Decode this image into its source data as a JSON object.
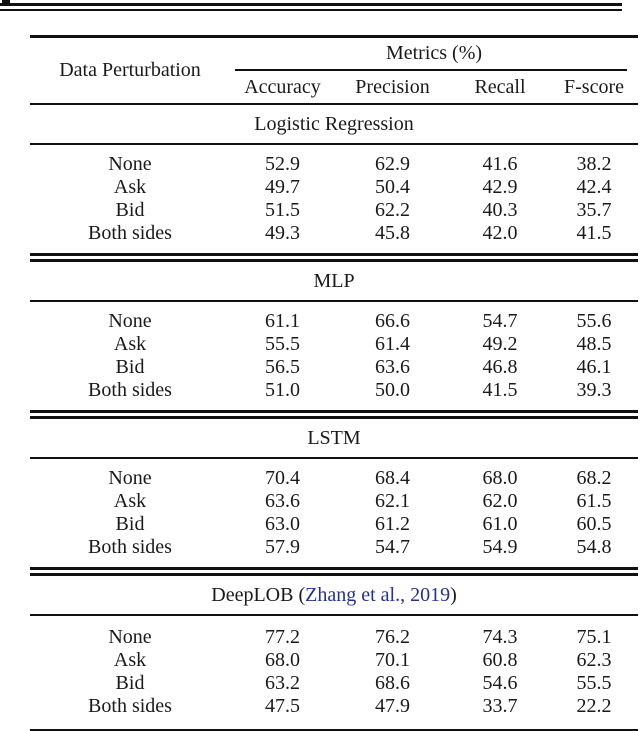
{
  "page": {
    "background_color": "#ffffff",
    "text_color": "#1a1a1a",
    "rule_color": "#111111",
    "citation_color": "#26308f"
  },
  "artifact": {
    "description": "cut-off rule and text fragment from content above the table"
  },
  "table": {
    "col_header_left": "Data Perturbation",
    "metrics_group_header": "Metrics (%)",
    "metric_columns": [
      "Accuracy",
      "Precision",
      "Recall",
      "F-score"
    ],
    "sections": [
      {
        "title_prefix": "Logistic Regression",
        "citation": "",
        "title_suffix": "",
        "rows": [
          {
            "label": "None",
            "values": [
              "52.9",
              "62.9",
              "41.6",
              "38.2"
            ]
          },
          {
            "label": "Ask",
            "values": [
              "49.7",
              "50.4",
              "42.9",
              "42.4"
            ]
          },
          {
            "label": "Bid",
            "values": [
              "51.5",
              "62.2",
              "40.3",
              "35.7"
            ]
          },
          {
            "label": "Both sides",
            "values": [
              "49.3",
              "45.8",
              "42.0",
              "41.5"
            ]
          }
        ]
      },
      {
        "title_prefix": "MLP",
        "citation": "",
        "title_suffix": "",
        "rows": [
          {
            "label": "None",
            "values": [
              "61.1",
              "66.6",
              "54.7",
              "55.6"
            ]
          },
          {
            "label": "Ask",
            "values": [
              "55.5",
              "61.4",
              "49.2",
              "48.5"
            ]
          },
          {
            "label": "Bid",
            "values": [
              "56.5",
              "63.6",
              "46.8",
              "46.1"
            ]
          },
          {
            "label": "Both sides",
            "values": [
              "51.0",
              "50.0",
              "41.5",
              "39.3"
            ]
          }
        ]
      },
      {
        "title_prefix": "LSTM",
        "citation": "",
        "title_suffix": "",
        "rows": [
          {
            "label": "None",
            "values": [
              "70.4",
              "68.4",
              "68.0",
              "68.2"
            ]
          },
          {
            "label": "Ask",
            "values": [
              "63.6",
              "62.1",
              "62.0",
              "61.5"
            ]
          },
          {
            "label": "Bid",
            "values": [
              "63.0",
              "61.2",
              "61.0",
              "60.5"
            ]
          },
          {
            "label": "Both sides",
            "values": [
              "57.9",
              "54.7",
              "54.9",
              "54.8"
            ]
          }
        ]
      },
      {
        "title_prefix": "DeepLOB (",
        "citation": "Zhang et al., 2019",
        "title_suffix": ")",
        "rows": [
          {
            "label": "None",
            "values": [
              "77.2",
              "76.2",
              "74.3",
              "75.1"
            ]
          },
          {
            "label": "Ask",
            "values": [
              "68.0",
              "70.1",
              "60.8",
              "62.3"
            ]
          },
          {
            "label": "Bid",
            "values": [
              "63.2",
              "68.6",
              "54.6",
              "55.5"
            ]
          },
          {
            "label": "Both sides",
            "values": [
              "47.5",
              "47.9",
              "33.7",
              "22.2"
            ]
          }
        ]
      }
    ]
  }
}
